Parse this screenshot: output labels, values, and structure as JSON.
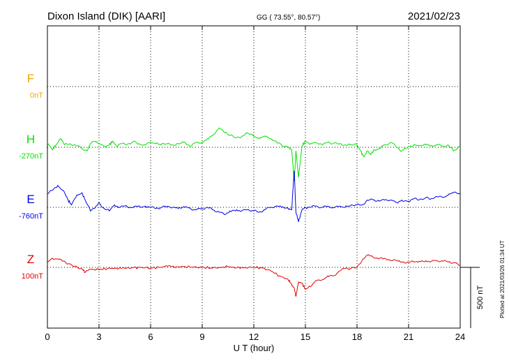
{
  "chart_data": {
    "type": "line",
    "title": "Dixon Island (DIK)  [AARI]",
    "coords": "GG ( 73.55°,  80.57°)",
    "date": "2021/02/23",
    "xlabel": "U T (hour)",
    "xlim": [
      0,
      24
    ],
    "xticks": [
      "0",
      "3",
      "6",
      "9",
      "12",
      "15",
      "18",
      "21",
      "24"
    ],
    "scale_label": "500 nT",
    "plotted_note": "Plotted at 2021/03/26 01:34 UT",
    "grid": true,
    "components": [
      {
        "name": "F",
        "baseline_label": "0nT",
        "color": "#f5a400",
        "values": []
      },
      {
        "name": "H",
        "baseline_label": "-270nT",
        "color": "#00e000",
        "values": [
          [
            0,
            -230
          ],
          [
            0.3,
            -290
          ],
          [
            0.5,
            -250
          ],
          [
            0.8,
            -200
          ],
          [
            1.0,
            -250
          ],
          [
            1.3,
            -240
          ],
          [
            1.6,
            -250
          ],
          [
            2.0,
            -280
          ],
          [
            2.3,
            -300
          ],
          [
            2.5,
            -240
          ],
          [
            2.8,
            -220
          ],
          [
            3.0,
            -240
          ],
          [
            3.3,
            -260
          ],
          [
            3.6,
            -250
          ],
          [
            3.8,
            -220
          ],
          [
            4.0,
            -260
          ],
          [
            4.3,
            -240
          ],
          [
            4.6,
            -250
          ],
          [
            5.0,
            -220
          ],
          [
            5.3,
            -240
          ],
          [
            5.6,
            -250
          ],
          [
            6.0,
            -230
          ],
          [
            6.3,
            -240
          ],
          [
            6.6,
            -250
          ],
          [
            7.0,
            -240
          ],
          [
            7.3,
            -250
          ],
          [
            7.6,
            -240
          ],
          [
            8.0,
            -230
          ],
          [
            8.3,
            -270
          ],
          [
            8.6,
            -230
          ],
          [
            9.0,
            -230
          ],
          [
            9.3,
            -200
          ],
          [
            9.6,
            -170
          ],
          [
            10.0,
            -110
          ],
          [
            10.3,
            -150
          ],
          [
            10.6,
            -170
          ],
          [
            11.0,
            -190
          ],
          [
            11.3,
            -180
          ],
          [
            11.6,
            -150
          ],
          [
            12.0,
            -180
          ],
          [
            12.3,
            -200
          ],
          [
            12.6,
            -180
          ],
          [
            13.0,
            -200
          ],
          [
            13.3,
            -220
          ],
          [
            13.6,
            -250
          ],
          [
            14.0,
            -270
          ],
          [
            14.2,
            -290
          ],
          [
            14.35,
            -550
          ],
          [
            14.45,
            -300
          ],
          [
            14.6,
            -520
          ],
          [
            14.8,
            -260
          ],
          [
            15.0,
            -220
          ],
          [
            15.3,
            -240
          ],
          [
            15.6,
            -230
          ],
          [
            16.0,
            -250
          ],
          [
            16.3,
            -230
          ],
          [
            16.6,
            -240
          ],
          [
            17.0,
            -240
          ],
          [
            17.3,
            -250
          ],
          [
            17.6,
            -250
          ],
          [
            18.0,
            -250
          ],
          [
            18.2,
            -300
          ],
          [
            18.4,
            -350
          ],
          [
            18.6,
            -300
          ],
          [
            18.8,
            -330
          ],
          [
            19.0,
            -290
          ],
          [
            19.3,
            -280
          ],
          [
            19.6,
            -250
          ],
          [
            20.0,
            -230
          ],
          [
            20.3,
            -270
          ],
          [
            20.6,
            -300
          ],
          [
            21.0,
            -260
          ],
          [
            21.3,
            -250
          ],
          [
            21.6,
            -260
          ],
          [
            22.0,
            -250
          ],
          [
            22.3,
            -260
          ],
          [
            22.6,
            -250
          ],
          [
            23.0,
            -260
          ],
          [
            23.3,
            -250
          ],
          [
            23.6,
            -300
          ],
          [
            24.0,
            -260
          ]
        ]
      },
      {
        "name": "E",
        "baseline_label": "-760nT",
        "color": "#0000e0",
        "values": [
          [
            0,
            -650
          ],
          [
            0.3,
            -620
          ],
          [
            0.6,
            -580
          ],
          [
            0.9,
            -620
          ],
          [
            1.2,
            -700
          ],
          [
            1.4,
            -740
          ],
          [
            1.7,
            -660
          ],
          [
            2.0,
            -640
          ],
          [
            2.2,
            -700
          ],
          [
            2.5,
            -790
          ],
          [
            2.8,
            -760
          ],
          [
            3.0,
            -720
          ],
          [
            3.3,
            -770
          ],
          [
            3.6,
            -790
          ],
          [
            3.9,
            -740
          ],
          [
            4.2,
            -760
          ],
          [
            4.5,
            -750
          ],
          [
            4.8,
            -760
          ],
          [
            5.1,
            -750
          ],
          [
            5.4,
            -760
          ],
          [
            5.7,
            -750
          ],
          [
            6.0,
            -760
          ],
          [
            6.3,
            -770
          ],
          [
            6.6,
            -760
          ],
          [
            7.0,
            -750
          ],
          [
            7.3,
            -760
          ],
          [
            7.6,
            -770
          ],
          [
            8.0,
            -760
          ],
          [
            8.3,
            -770
          ],
          [
            8.6,
            -780
          ],
          [
            9.0,
            -770
          ],
          [
            9.3,
            -760
          ],
          [
            9.6,
            -780
          ],
          [
            10.0,
            -800
          ],
          [
            10.3,
            -820
          ],
          [
            10.6,
            -790
          ],
          [
            11.0,
            -780
          ],
          [
            11.3,
            -790
          ],
          [
            11.6,
            -780
          ],
          [
            12.0,
            -790
          ],
          [
            12.3,
            -800
          ],
          [
            12.6,
            -780
          ],
          [
            13.0,
            -760
          ],
          [
            13.3,
            -750
          ],
          [
            13.6,
            -760
          ],
          [
            14.0,
            -770
          ],
          [
            14.2,
            -780
          ],
          [
            14.35,
            -460
          ],
          [
            14.45,
            -800
          ],
          [
            14.6,
            -880
          ],
          [
            14.8,
            -780
          ],
          [
            15.0,
            -760
          ],
          [
            15.3,
            -760
          ],
          [
            15.6,
            -750
          ],
          [
            16.0,
            -760
          ],
          [
            16.3,
            -750
          ],
          [
            16.6,
            -760
          ],
          [
            17.0,
            -750
          ],
          [
            17.3,
            -760
          ],
          [
            17.6,
            -750
          ],
          [
            18.0,
            -740
          ],
          [
            18.3,
            -740
          ],
          [
            18.6,
            -700
          ],
          [
            19.0,
            -700
          ],
          [
            19.3,
            -710
          ],
          [
            19.6,
            -700
          ],
          [
            20.0,
            -700
          ],
          [
            20.3,
            -720
          ],
          [
            20.6,
            -700
          ],
          [
            21.0,
            -710
          ],
          [
            21.3,
            -690
          ],
          [
            21.6,
            -700
          ],
          [
            22.0,
            -680
          ],
          [
            22.3,
            -690
          ],
          [
            22.6,
            -670
          ],
          [
            23.0,
            -680
          ],
          [
            23.3,
            -660
          ],
          [
            23.6,
            -640
          ],
          [
            24.0,
            -650
          ]
        ]
      },
      {
        "name": "Z",
        "baseline_label": "100nT",
        "color": "#e00000",
        "values": [
          [
            0,
            140
          ],
          [
            0.3,
            175
          ],
          [
            0.6,
            170
          ],
          [
            0.9,
            150
          ],
          [
            1.2,
            130
          ],
          [
            1.6,
            110
          ],
          [
            2.0,
            90
          ],
          [
            2.2,
            60
          ],
          [
            2.5,
            85
          ],
          [
            3.0,
            80
          ],
          [
            3.5,
            90
          ],
          [
            4.0,
            95
          ],
          [
            4.5,
            92
          ],
          [
            5.0,
            97
          ],
          [
            5.5,
            100
          ],
          [
            6.0,
            95
          ],
          [
            6.5,
            100
          ],
          [
            7.0,
            110
          ],
          [
            7.5,
            105
          ],
          [
            8.0,
            107
          ],
          [
            8.5,
            100
          ],
          [
            9.0,
            100
          ],
          [
            9.5,
            95
          ],
          [
            10.0,
            100
          ],
          [
            10.5,
            105
          ],
          [
            11.0,
            95
          ],
          [
            11.5,
            100
          ],
          [
            12.0,
            100
          ],
          [
            12.5,
            95
          ],
          [
            13.0,
            70
          ],
          [
            13.5,
            30
          ],
          [
            14.0,
            0
          ],
          [
            14.2,
            -40
          ],
          [
            14.35,
            -70
          ],
          [
            14.45,
            -140
          ],
          [
            14.6,
            -20
          ],
          [
            14.8,
            -30
          ],
          [
            15.0,
            -80
          ],
          [
            15.3,
            -60
          ],
          [
            15.6,
            -10
          ],
          [
            16.0,
            0
          ],
          [
            16.3,
            30
          ],
          [
            16.6,
            30
          ],
          [
            17.0,
            70
          ],
          [
            17.3,
            90
          ],
          [
            17.6,
            90
          ],
          [
            18.0,
            105
          ],
          [
            18.3,
            160
          ],
          [
            18.6,
            200
          ],
          [
            18.9,
            190
          ],
          [
            19.2,
            175
          ],
          [
            19.5,
            170
          ],
          [
            19.8,
            165
          ],
          [
            20.1,
            160
          ],
          [
            20.4,
            150
          ],
          [
            20.7,
            145
          ],
          [
            21.0,
            140
          ],
          [
            21.3,
            145
          ],
          [
            21.6,
            150
          ],
          [
            22.0,
            155
          ],
          [
            22.3,
            150
          ],
          [
            22.6,
            155
          ],
          [
            23.0,
            150
          ],
          [
            23.3,
            145
          ],
          [
            23.6,
            140
          ],
          [
            24.0,
            115
          ]
        ]
      }
    ]
  }
}
